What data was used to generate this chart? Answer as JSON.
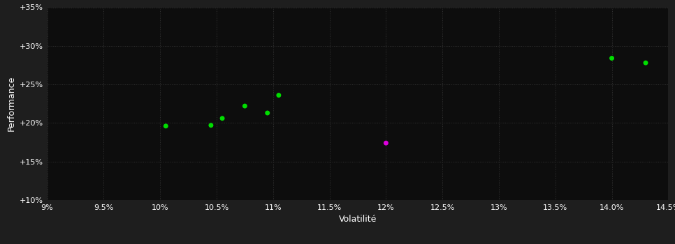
{
  "background_color": "#1e1e1e",
  "plot_bg_color": "#0d0d0d",
  "grid_color": "#333333",
  "text_color": "#ffffff",
  "xlabel": "Volatilité",
  "ylabel": "Performance",
  "xlim": [
    0.09,
    0.145
  ],
  "ylim": [
    0.1,
    0.35
  ],
  "xticks": [
    0.09,
    0.095,
    0.1,
    0.105,
    0.11,
    0.115,
    0.12,
    0.125,
    0.13,
    0.135,
    0.14,
    0.145
  ],
  "yticks": [
    0.1,
    0.15,
    0.2,
    0.25,
    0.3,
    0.35
  ],
  "green_points": [
    [
      0.1005,
      0.196
    ],
    [
      0.1045,
      0.197
    ],
    [
      0.1055,
      0.206
    ],
    [
      0.1075,
      0.222
    ],
    [
      0.1095,
      0.213
    ],
    [
      0.1105,
      0.236
    ],
    [
      0.14,
      0.284
    ],
    [
      0.143,
      0.278
    ]
  ],
  "magenta_points": [
    [
      0.12,
      0.174
    ]
  ],
  "green_color": "#00dd00",
  "magenta_color": "#dd00dd",
  "marker_size": 5,
  "tick_fontsize": 8,
  "label_fontsize": 9
}
